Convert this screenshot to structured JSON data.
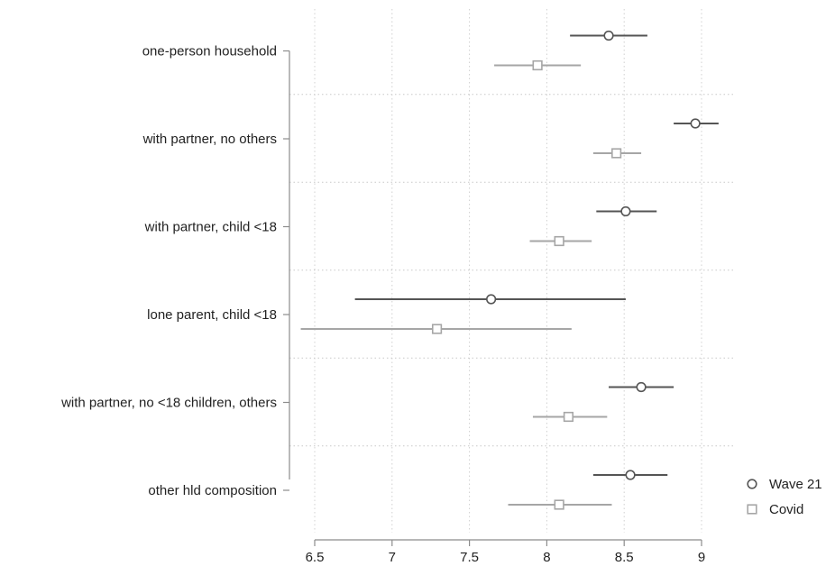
{
  "chart_data": {
    "type": "coefficient_plot",
    "title": "",
    "xlabel": "",
    "ylabel": "",
    "xlim": [
      6.4,
      9.2
    ],
    "x_ticks": [
      "6.5",
      "7",
      "7.5",
      "8",
      "8.5",
      "9"
    ],
    "x_tick_values": [
      6.5,
      7,
      7.5,
      8,
      8.5,
      9
    ],
    "grid": true,
    "legend_position": "bottom-right",
    "categories": [
      "one-person household",
      "with partner, no others",
      "with partner, child <18",
      "lone parent, child <18",
      "with partner, no <18 children, others",
      "other hld composition"
    ],
    "series": [
      {
        "name": "Wave 21",
        "marker": "circle",
        "color": "#555555",
        "estimates": [
          8.4,
          8.96,
          8.51,
          7.64,
          8.61,
          8.54
        ],
        "lower": [
          8.15,
          8.82,
          8.32,
          6.76,
          8.4,
          8.3
        ],
        "upper": [
          8.65,
          9.11,
          8.71,
          8.51,
          8.82,
          8.78
        ]
      },
      {
        "name": "Covid",
        "marker": "square",
        "color": "#a6a6a6",
        "estimates": [
          7.94,
          8.45,
          8.08,
          7.29,
          8.14,
          8.08
        ],
        "lower": [
          7.66,
          8.3,
          7.89,
          6.41,
          7.91,
          7.75
        ],
        "upper": [
          8.22,
          8.61,
          8.29,
          8.16,
          8.39,
          8.42
        ]
      }
    ]
  }
}
